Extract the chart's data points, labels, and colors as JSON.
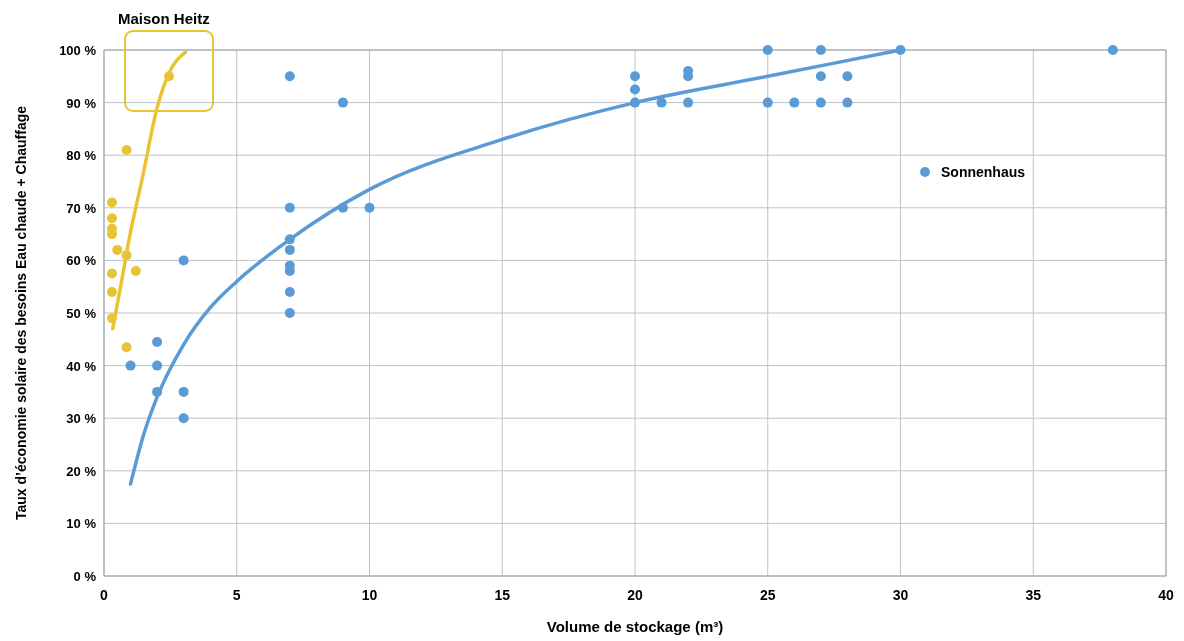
{
  "chart_data": {
    "type": "scatter",
    "xlabel": "Volume de stockage (m³)",
    "ylabel": "Taux d’économie solaire des besoins Eau chaude + Chauffage",
    "annotations": [
      "Maison Heitz"
    ],
    "xlim": [
      0,
      40
    ],
    "xticks": [
      0,
      5,
      10,
      15,
      20,
      25,
      30,
      35,
      40
    ],
    "ylim": [
      0,
      100
    ],
    "yticks": [
      {
        "value": 0,
        "label": "0 %"
      },
      {
        "value": 10,
        "label": "10 %"
      },
      {
        "value": 20,
        "label": "20 %"
      },
      {
        "value": 30,
        "label": "30 %"
      },
      {
        "value": 40,
        "label": "40 %"
      },
      {
        "value": 50,
        "label": "50 %"
      },
      {
        "value": 60,
        "label": "60 %"
      },
      {
        "value": 70,
        "label": "70 %"
      },
      {
        "value": 80,
        "label": "80 %"
      },
      {
        "value": 90,
        "label": "90 %"
      },
      {
        "value": 100,
        "label": "100 %"
      }
    ],
    "grid": true,
    "legend": "right",
    "marker": "circle",
    "series": [
      {
        "color": "#e8c334",
        "x": [
          0.3,
          0.3,
          0.3,
          0.3,
          0.5,
          0.85,
          1.2,
          0.3,
          0.3,
          0.3,
          0.85,
          0.85,
          2.45
        ],
        "values": [
          71,
          68,
          66,
          65,
          62,
          61,
          58,
          57.5,
          54,
          49,
          43.5,
          81,
          95
        ]
      },
      {
        "name": "Sonnenhaus",
        "color": "#5b9bd5",
        "x": [
          1,
          2,
          2,
          2,
          3,
          3,
          3,
          7,
          7,
          7,
          7,
          7,
          7,
          7,
          7,
          9,
          9,
          10,
          20,
          20,
          20,
          21,
          22,
          22,
          22,
          25,
          25,
          26,
          27,
          27,
          27,
          28,
          28,
          30,
          38
        ],
        "values": [
          40,
          44.5,
          40,
          35,
          35,
          30,
          60,
          95,
          70,
          64,
          62,
          59,
          58,
          54,
          50,
          90,
          70,
          70,
          95,
          92.5,
          90,
          90,
          96,
          95,
          90,
          100,
          90,
          90,
          100,
          95,
          90,
          95,
          90,
          100,
          100
        ]
      },
      {
        "type": "line",
        "marker": "none",
        "color": "#e8c334",
        "x": [
          0.33,
          0.65,
          0.96,
          1.45,
          2.0,
          2.45,
          3.07
        ],
        "values": [
          47,
          55.7,
          64.4,
          75.8,
          89,
          95.6,
          99.6
        ]
      },
      {
        "type": "line",
        "marker": "none",
        "color": "#5b9bd5",
        "x": [
          1,
          1.5,
          2,
          3,
          4,
          5,
          7,
          10,
          15,
          20,
          25,
          30
        ],
        "values": [
          17.5,
          27,
          34,
          44,
          51,
          56,
          64,
          73.5,
          83,
          90,
          95,
          100
        ]
      }
    ]
  }
}
